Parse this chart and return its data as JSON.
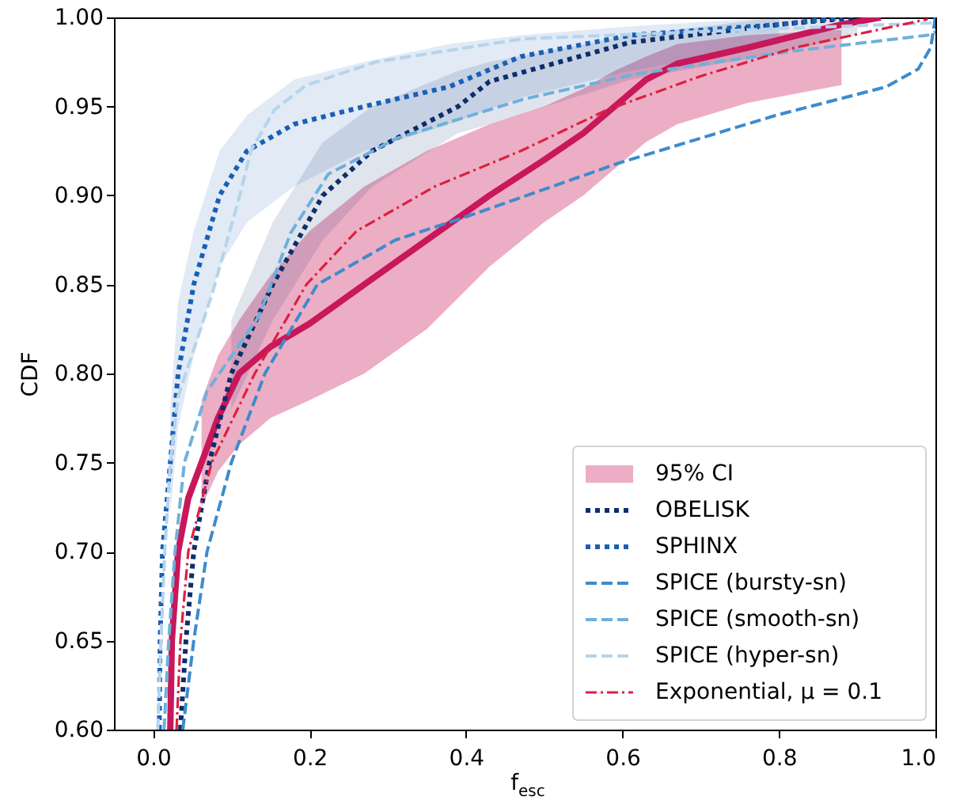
{
  "chart_data": {
    "type": "line",
    "xlabel": "f$_{esc}$",
    "ylabel": "CDF",
    "xlim": [
      -0.05,
      1.0
    ],
    "ylim": [
      0.6,
      1.0
    ],
    "xticks": [
      {
        "value": 0,
        "label": "0.0"
      },
      {
        "value": 0.2,
        "label": "0.2"
      },
      {
        "value": 0.4,
        "label": "0.4"
      },
      {
        "value": 0.6,
        "label": "0.6"
      },
      {
        "value": 0.8,
        "label": "0.8"
      },
      {
        "value": 1.0,
        "label": "1.0"
      }
    ],
    "yticks": [
      {
        "value": 0.6,
        "label": "0.60"
      },
      {
        "value": 0.65,
        "label": "0.65"
      },
      {
        "value": 0.7,
        "label": "0.70"
      },
      {
        "value": 0.75,
        "label": "0.75"
      },
      {
        "value": 0.8,
        "label": "0.80"
      },
      {
        "value": 0.85,
        "label": "0.85"
      },
      {
        "value": 0.9,
        "label": "0.90"
      },
      {
        "value": 0.95,
        "label": "0.95"
      },
      {
        "value": 1.0,
        "label": "1.00"
      }
    ],
    "annotations": [
      "95% CI"
    ],
    "grid": false,
    "legend": "bottom right",
    "series": [
      {
        "color": "#c8175a",
        "line_style": "solid",
        "x": [
          0.022,
          0.024,
          0.032,
          0.045,
          0.062,
          0.083,
          0.11,
          0.15,
          0.2,
          0.27,
          0.35,
          0.43,
          0.5,
          0.55,
          0.59,
          0.63,
          0.67,
          0.76,
          0.88,
          0.93
        ],
        "values": [
          0.6,
          0.65,
          0.7,
          0.73,
          0.75,
          0.775,
          0.8,
          0.815,
          0.828,
          0.85,
          0.875,
          0.9,
          0.92,
          0.935,
          0.95,
          0.965,
          0.974,
          0.983,
          0.996,
          1.0
        ],
        "lower": [
          null,
          null,
          null,
          null,
          0.725,
          0.745,
          0.76,
          0.775,
          0.785,
          0.8,
          0.825,
          0.86,
          0.885,
          0.9,
          0.915,
          0.93,
          0.94,
          0.952,
          0.962,
          null
        ],
        "upper": [
          null,
          null,
          null,
          null,
          0.785,
          0.81,
          0.83,
          0.855,
          0.88,
          0.905,
          0.925,
          0.94,
          0.95,
          0.96,
          0.97,
          0.978,
          0.985,
          0.99,
          0.993,
          null
        ]
      },
      {
        "name": "OBELISK",
        "color": "#0d2e6b",
        "line_style": "dotted",
        "x": [
          0.035,
          0.042,
          0.052,
          0.072,
          0.1,
          0.153,
          0.217,
          0.28,
          0.39,
          0.43,
          0.61,
          0.8,
          0.9
        ],
        "values": [
          0.6,
          0.65,
          0.7,
          0.75,
          0.8,
          0.85,
          0.9,
          0.925,
          0.95,
          0.964,
          0.986,
          0.996,
          1.0
        ],
        "lower": [
          null,
          null,
          null,
          null,
          0.78,
          0.83,
          0.875,
          0.905,
          0.935,
          0.94,
          0.965,
          0.98,
          0.99
        ],
        "upper": [
          null,
          null,
          null,
          null,
          0.83,
          0.885,
          0.93,
          0.95,
          0.97,
          0.975,
          0.99,
          1.0,
          1.0
        ]
      },
      {
        "name": "SPHINX",
        "color": "#1a5fb4",
        "line_style": "dotted",
        "x": [
          0.008,
          0.009,
          0.012,
          0.022,
          0.032,
          0.052,
          0.085,
          0.12,
          0.18,
          0.27,
          0.378,
          0.47,
          0.61,
          0.8,
          0.88
        ],
        "values": [
          0.6,
          0.65,
          0.7,
          0.75,
          0.8,
          0.85,
          0.9,
          0.925,
          0.94,
          0.95,
          0.961,
          0.978,
          0.99,
          0.996,
          1.0
        ],
        "lower": [
          null,
          null,
          null,
          0.72,
          0.77,
          0.81,
          0.86,
          0.885,
          0.905,
          0.925,
          0.94,
          0.955,
          0.97,
          0.985,
          null
        ],
        "upper": [
          null,
          null,
          null,
          0.78,
          0.84,
          0.88,
          0.925,
          0.945,
          0.965,
          0.975,
          0.985,
          0.99,
          0.995,
          1.0,
          null
        ]
      },
      {
        "name": "SPICE (bursty-sn)",
        "color": "#3d8bcd",
        "line_style": "dashed",
        "x": [
          0.038,
          0.052,
          0.069,
          0.1,
          0.143,
          0.21,
          0.31,
          0.4,
          0.594,
          0.796,
          0.937,
          0.978,
          0.994,
          1.0
        ],
        "values": [
          0.6,
          0.65,
          0.7,
          0.75,
          0.8,
          0.85,
          0.875,
          0.888,
          0.918,
          0.945,
          0.961,
          0.971,
          0.983,
          1.0
        ]
      },
      {
        "name": "SPICE (smooth-sn)",
        "color": "#6fb0dc",
        "line_style": "dashed",
        "x": [
          0.014,
          0.02,
          0.028,
          0.04,
          0.069,
          0.135,
          0.176,
          0.224,
          0.311,
          0.473,
          0.614,
          0.816,
          0.99,
          1.0
        ],
        "values": [
          0.6,
          0.65,
          0.7,
          0.75,
          0.79,
          0.832,
          0.879,
          0.912,
          0.932,
          0.954,
          0.968,
          0.981,
          0.99,
          0.992
        ]
      },
      {
        "name": "SPICE (hyper-sn)",
        "color": "#b5d4ec",
        "line_style": "dashed",
        "x": [
          0.006,
          0.01,
          0.015,
          0.022,
          0.032,
          0.075,
          0.109,
          0.125,
          0.155,
          0.196,
          0.285,
          0.473,
          0.7,
          1.0
        ],
        "values": [
          0.6,
          0.65,
          0.7,
          0.75,
          0.787,
          0.844,
          0.897,
          0.925,
          0.948,
          0.962,
          0.975,
          0.988,
          0.992,
          0.997
        ]
      },
      {
        "name": "Exponential, μ = 0.1",
        "color": "#dc2040",
        "line_style": "dashdot",
        "x": [
          0.03,
          0.035,
          0.045,
          0.075,
          0.13,
          0.196,
          0.26,
          0.36,
          0.47,
          0.58,
          0.7,
          0.82,
          0.99
        ],
        "values": [
          0.6,
          0.65,
          0.7,
          0.75,
          0.8,
          0.85,
          0.88,
          0.905,
          0.925,
          0.948,
          0.967,
          0.983,
          0.999
        ]
      }
    ]
  }
}
